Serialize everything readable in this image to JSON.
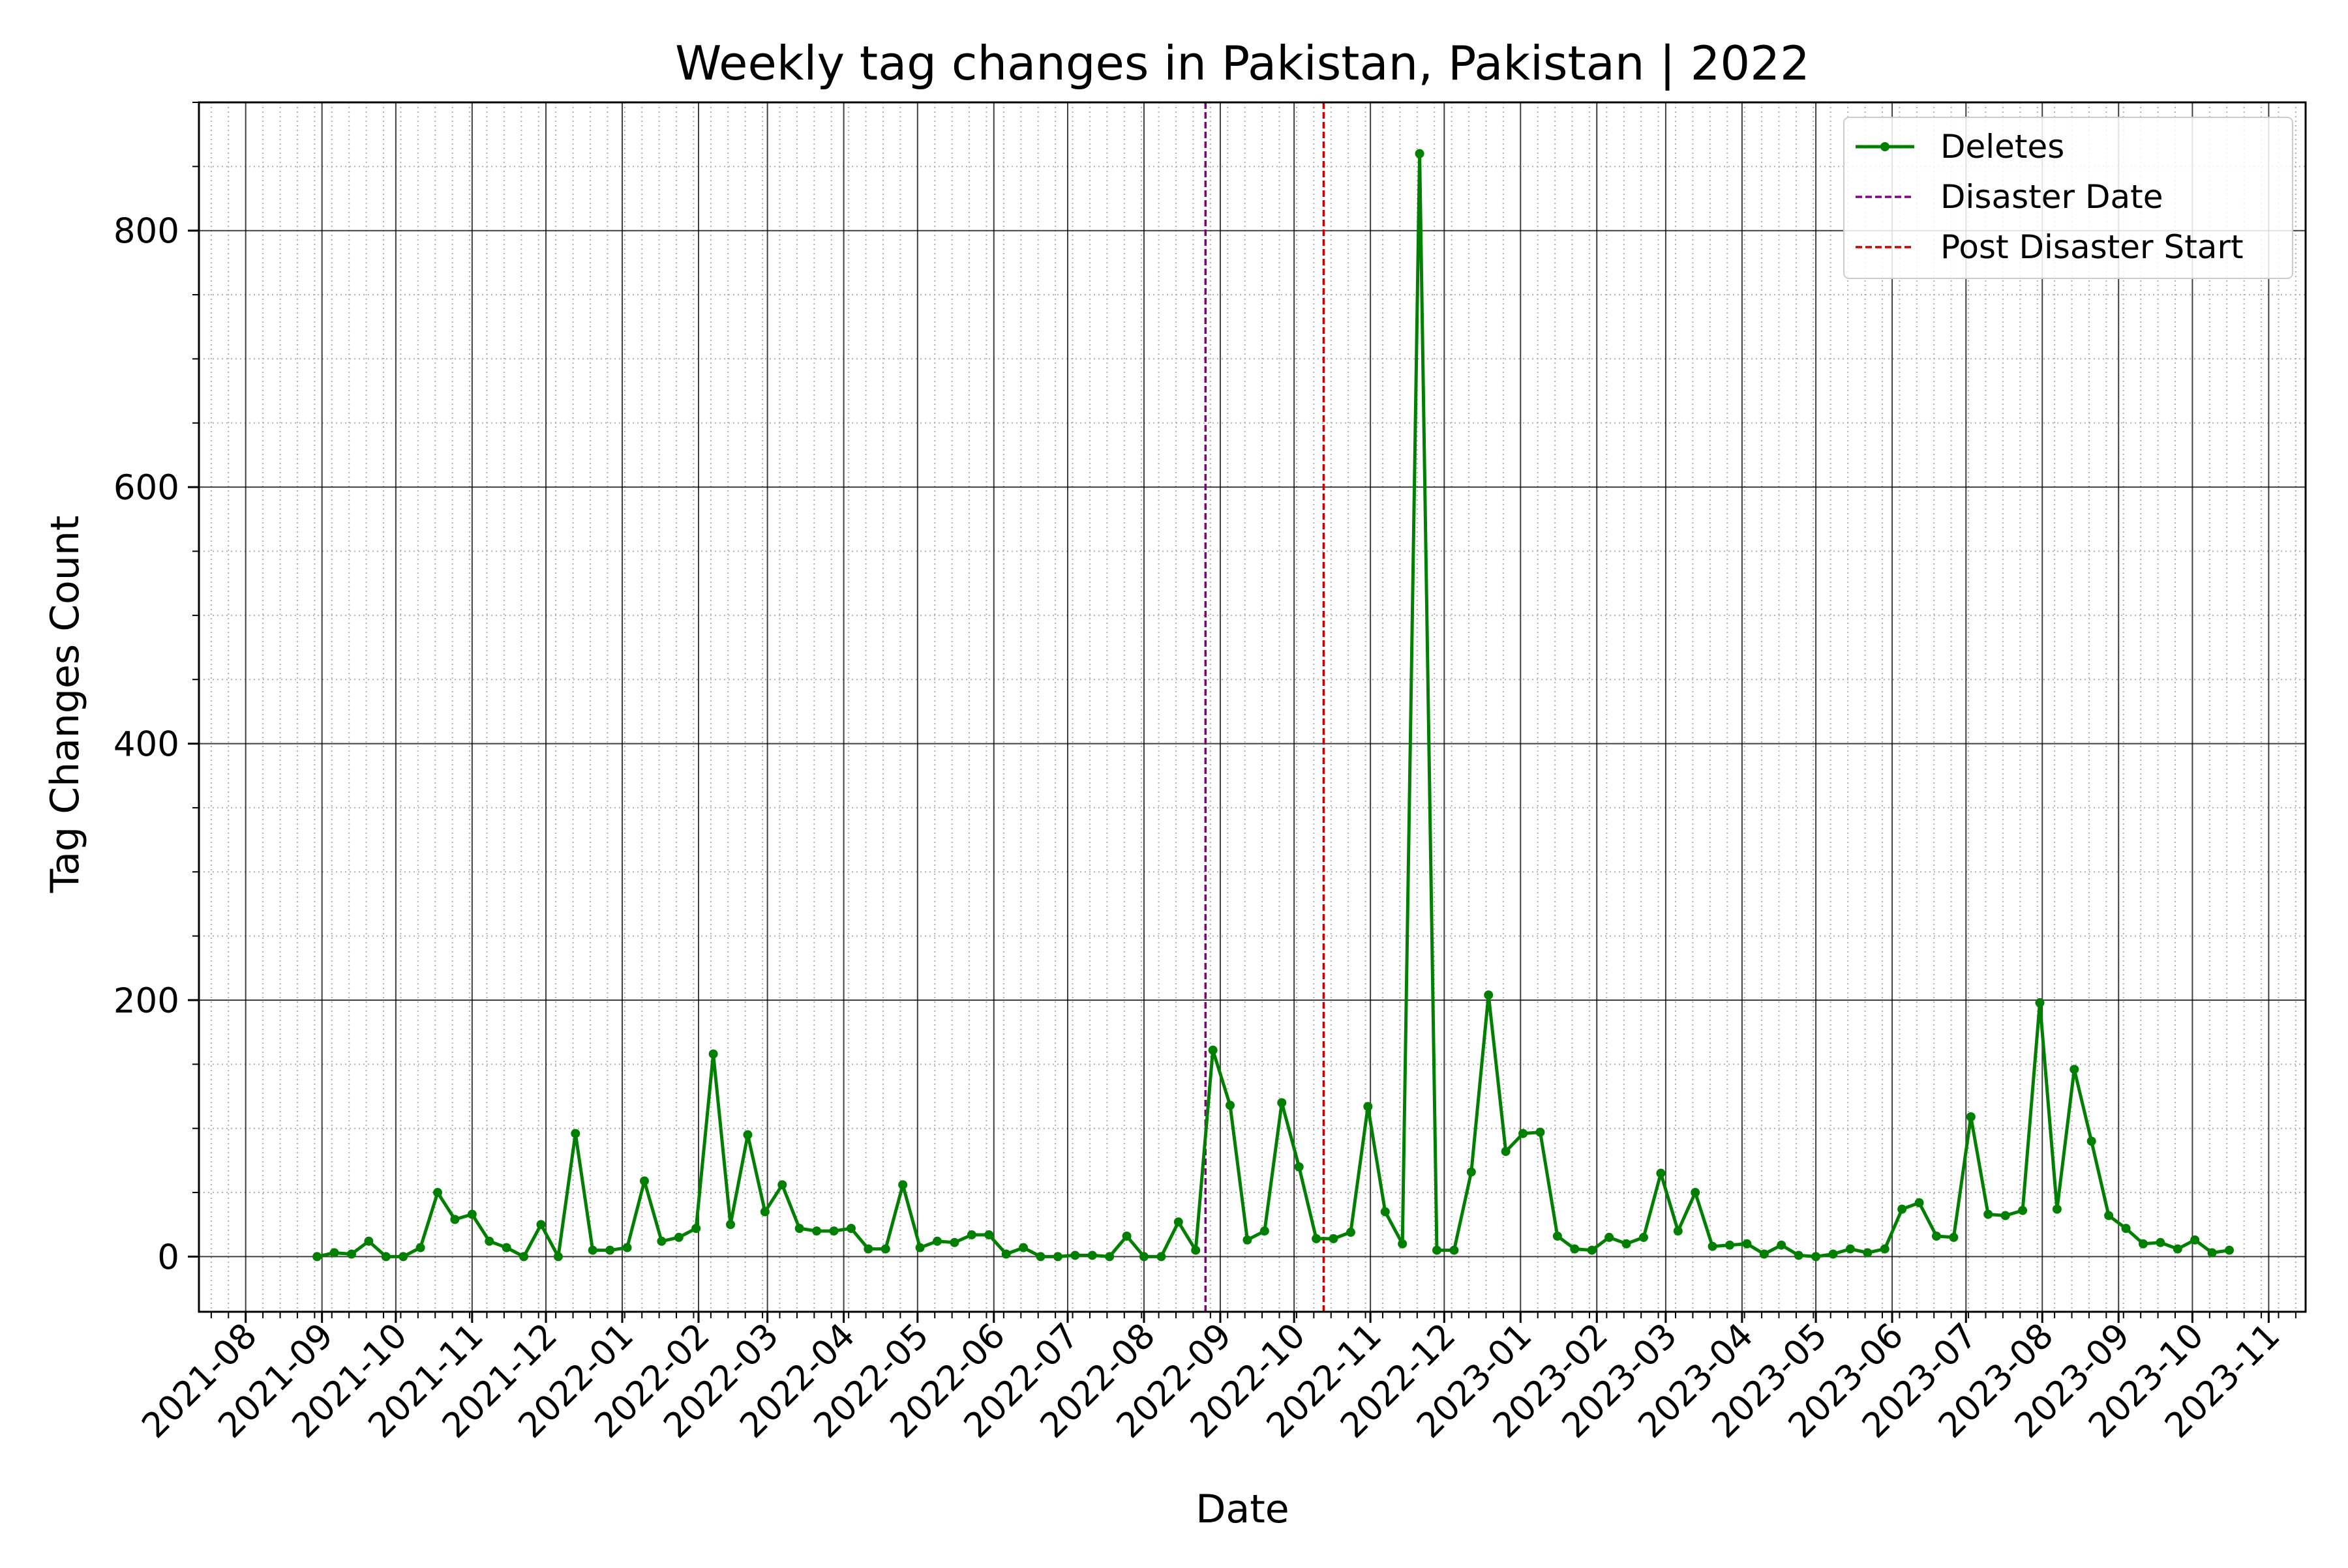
{
  "chart_data": {
    "type": "line",
    "title": "Weekly tag changes in Pakistan, Pakistan | 2022",
    "xlabel": "Date",
    "ylabel": "Tag Changes Count",
    "xlim": [
      "2021-07-13",
      "2023-11-16"
    ],
    "ylim": [
      -43,
      900
    ],
    "yticks": [
      0,
      200,
      400,
      600,
      800
    ],
    "xticks": [
      "2021-08",
      "2021-09",
      "2021-10",
      "2021-11",
      "2021-12",
      "2022-01",
      "2022-02",
      "2022-03",
      "2022-04",
      "2022-05",
      "2022-06",
      "2022-07",
      "2022-08",
      "2022-09",
      "2022-10",
      "2022-11",
      "2022-12",
      "2023-01",
      "2023-02",
      "2023-03",
      "2023-04",
      "2023-05",
      "2023-06",
      "2023-07",
      "2023-08",
      "2023-09",
      "2023-10",
      "2023-11"
    ],
    "grid": "major solid, minor dotted",
    "legend_position": "top-right",
    "series": [
      {
        "name": "Deletes",
        "color": "#007f00",
        "start_date": "2021-08-30",
        "interval_days": 7,
        "values": [
          0,
          3,
          2,
          12,
          0,
          0,
          7,
          50,
          29,
          33,
          12,
          7,
          0,
          25,
          0,
          96,
          5,
          5,
          7,
          59,
          12,
          15,
          22,
          158,
          25,
          95,
          35,
          56,
          22,
          20,
          20,
          22,
          6,
          6,
          56,
          7,
          12,
          11,
          17,
          17,
          2,
          7,
          0,
          0,
          1,
          1,
          0,
          16,
          0,
          0,
          27,
          5,
          161,
          118,
          13,
          20,
          120,
          70,
          14,
          14,
          19,
          117,
          35,
          10,
          860,
          5,
          5,
          66,
          204,
          82,
          96,
          97,
          16,
          6,
          5,
          15,
          10,
          15,
          65,
          20,
          50,
          8,
          9,
          10,
          2,
          9,
          1,
          0,
          2,
          6,
          3,
          6,
          37,
          42,
          16,
          15,
          109,
          33,
          32,
          36,
          198,
          37,
          146,
          90,
          32,
          22,
          10,
          11,
          6,
          13,
          3,
          5
        ]
      }
    ],
    "vlines": [
      {
        "name": "Disaster Date",
        "date": "2022-08-26",
        "color": "#800080",
        "style": "dashed"
      },
      {
        "name": "Post Disaster Start",
        "date": "2022-10-13",
        "color": "#cc0000",
        "style": "dashed"
      }
    ]
  }
}
